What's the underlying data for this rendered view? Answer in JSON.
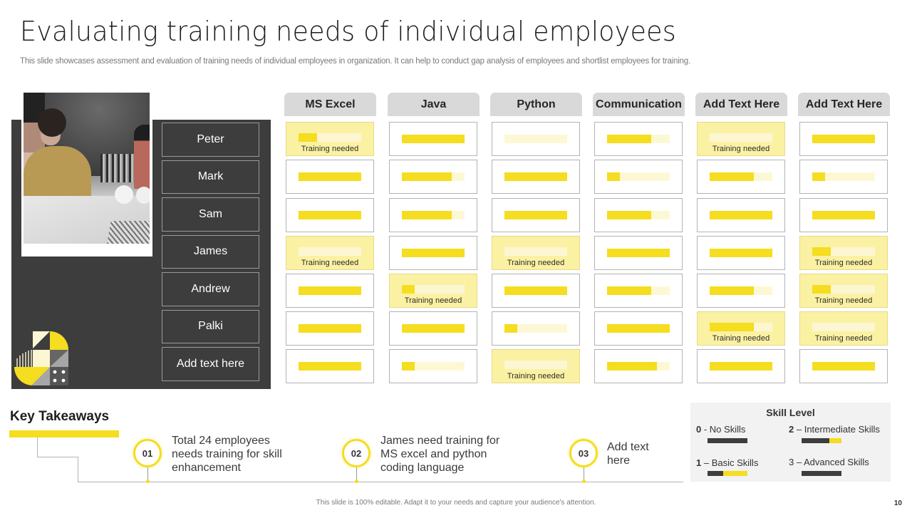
{
  "title": "Evaluating training needs of individual employees",
  "subtitle": "This slide showcases assessment and evaluation of training needs of individual employees in organization. It can help to conduct gap analysis of employees and shortlist employees for training.",
  "employees": [
    "Peter",
    "Mark",
    "Sam",
    "James",
    "Andrew",
    "Palki",
    "Add text here"
  ],
  "skills": [
    "MS Excel",
    "Java",
    "Python",
    "Communication",
    "Add Text Here",
    "Add Text Here"
  ],
  "training_label": "Training needed",
  "colors": {
    "accent": "#f5dd1f",
    "dark_panel": "#3d3d3d",
    "header_bg": "#d9d9d9",
    "training_cell_bg": "#fbf1a3",
    "track": "#fdf8d4",
    "legend_bg": "#f2f2f2"
  },
  "grid": [
    [
      {
        "fill": 0.3,
        "tn": true
      },
      {
        "fill": 1.0,
        "tn": false
      },
      {
        "fill": 0.0,
        "tn": false
      },
      {
        "fill": 0.7,
        "tn": false
      },
      {
        "fill": 0.0,
        "tn": true
      },
      {
        "fill": 1.0,
        "tn": false
      }
    ],
    [
      {
        "fill": 1.0,
        "tn": false
      },
      {
        "fill": 0.8,
        "tn": false
      },
      {
        "fill": 1.0,
        "tn": false
      },
      {
        "fill": 0.2,
        "tn": false
      },
      {
        "fill": 0.7,
        "tn": false
      },
      {
        "fill": 0.2,
        "tn": false
      }
    ],
    [
      {
        "fill": 1.0,
        "tn": false
      },
      {
        "fill": 0.8,
        "tn": false
      },
      {
        "fill": 1.0,
        "tn": false
      },
      {
        "fill": 0.7,
        "tn": false
      },
      {
        "fill": 1.0,
        "tn": false
      },
      {
        "fill": 1.0,
        "tn": false
      }
    ],
    [
      {
        "fill": 0.0,
        "tn": true
      },
      {
        "fill": 1.0,
        "tn": false
      },
      {
        "fill": 0.0,
        "tn": true
      },
      {
        "fill": 1.0,
        "tn": false
      },
      {
        "fill": 1.0,
        "tn": false
      },
      {
        "fill": 0.3,
        "tn": true
      }
    ],
    [
      {
        "fill": 1.0,
        "tn": false
      },
      {
        "fill": 0.2,
        "tn": true
      },
      {
        "fill": 1.0,
        "tn": false
      },
      {
        "fill": 0.7,
        "tn": false
      },
      {
        "fill": 0.7,
        "tn": false
      },
      {
        "fill": 0.3,
        "tn": true
      }
    ],
    [
      {
        "fill": 1.0,
        "tn": false
      },
      {
        "fill": 1.0,
        "tn": false
      },
      {
        "fill": 0.2,
        "tn": false
      },
      {
        "fill": 1.0,
        "tn": false
      },
      {
        "fill": 0.7,
        "tn": true
      },
      {
        "fill": 0.0,
        "tn": true
      }
    ],
    [
      {
        "fill": 1.0,
        "tn": false
      },
      {
        "fill": 0.2,
        "tn": false
      },
      {
        "fill": 0.0,
        "tn": true
      },
      {
        "fill": 0.8,
        "tn": false
      },
      {
        "fill": 1.0,
        "tn": false
      },
      {
        "fill": 1.0,
        "tn": false
      }
    ]
  ],
  "key_takeaways": {
    "title": "Key Takeaways",
    "items": [
      {
        "number": "01",
        "text": "Total 24 employees needs training for skill enhancement"
      },
      {
        "number": "02",
        "text": "James need training for MS excel and python coding language"
      },
      {
        "number": "03",
        "text": "Add text here"
      }
    ]
  },
  "legend": {
    "title": "Skill Level",
    "items": [
      {
        "num": "0",
        "sep": " - ",
        "label": "No Skills",
        "fill": 0.0
      },
      {
        "num": "2",
        "sep": " – ",
        "label": "Intermediate  Skills",
        "fill": 0.3
      },
      {
        "num": "1",
        "sep": " – ",
        "label": "Basic Skills",
        "fill": 0.6
      },
      {
        "num": "3",
        "sep": " – ",
        "label": "Advanced  Skills",
        "fill": 0.0
      }
    ]
  },
  "footer": "This slide is 100% editable. Adapt it to your needs and capture your audience's attention.",
  "page_number": "10"
}
